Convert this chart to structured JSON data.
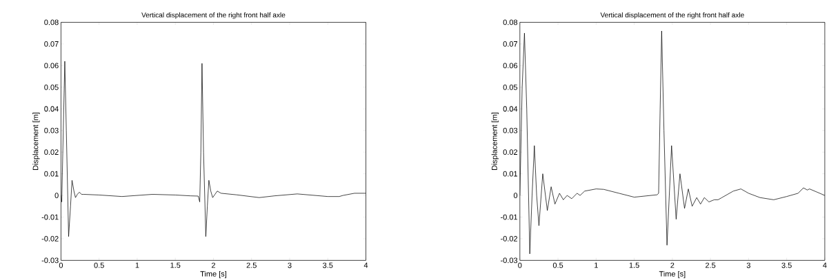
{
  "chart_data": [
    {
      "type": "line",
      "title": "Vertical displacement of the right front half axle",
      "xlabel": "Time [s]",
      "ylabel": "Displacement [m]",
      "color": "#000000",
      "xlim": [
        0,
        4
      ],
      "ylim": [
        -0.03,
        0.08
      ],
      "xticks": [
        0,
        0.5,
        1,
        1.5,
        2,
        2.5,
        3,
        3.5,
        4
      ],
      "yticks": [
        -0.03,
        -0.02,
        -0.01,
        0,
        0.01,
        0.02,
        0.03,
        0.04,
        0.05,
        0.06,
        0.07,
        0.08
      ],
      "x": [
        0,
        0.01,
        0.03,
        0.05,
        0.07,
        0.1,
        0.125,
        0.145,
        0.17,
        0.19,
        0.215,
        0.24,
        0.27,
        0.3,
        0.5,
        0.8,
        1.2,
        1.5,
        1.7,
        1.8,
        1.82,
        1.835,
        1.85,
        1.87,
        1.9,
        1.92,
        1.94,
        1.965,
        1.99,
        2.02,
        2.05,
        2.1,
        2.3,
        2.6,
        2.8,
        3.1,
        3.3,
        3.5,
        3.65,
        3.7,
        3.85,
        4
      ],
      "values": [
        0,
        -0.003,
        0.03,
        0.062,
        0.03,
        -0.019,
        -0.005,
        0.007,
        0.002,
        -0.001,
        0.0005,
        0.0015,
        0.0005,
        0.0005,
        0.0002,
        -0.0005,
        0.0005,
        0.0002,
        -0.0002,
        -0.0003,
        -0.003,
        0.02,
        0.061,
        0.02,
        -0.019,
        -0.005,
        0.007,
        0.002,
        -0.001,
        0.0005,
        0.002,
        0.001,
        0.0003,
        -0.001,
        -0.0002,
        0.0007,
        0.0001,
        -0.0005,
        -0.0005,
        0,
        0.001,
        0.001
      ]
    },
    {
      "type": "line",
      "title": "Vertical displacement of the right front half axle",
      "xlabel": "Time [s]",
      "ylabel": "Displacement [m]",
      "color": "#000000",
      "xlim": [
        0,
        4
      ],
      "ylim": [
        -0.03,
        0.08
      ],
      "xticks": [
        0,
        0.5,
        1,
        1.5,
        2,
        2.5,
        3,
        3.5,
        4
      ],
      "yticks": [
        -0.03,
        -0.02,
        -0.01,
        0,
        0.01,
        0.02,
        0.03,
        0.04,
        0.05,
        0.06,
        0.07,
        0.08
      ],
      "x": [
        0,
        0.03,
        0.06,
        0.09,
        0.13,
        0.16,
        0.19,
        0.22,
        0.25,
        0.3,
        0.36,
        0.41,
        0.46,
        0.52,
        0.57,
        0.62,
        0.68,
        0.75,
        0.79,
        0.85,
        1.0,
        1.1,
        1.3,
        1.5,
        1.8,
        1.82,
        1.84,
        1.86,
        1.89,
        1.93,
        1.96,
        1.99,
        2.05,
        2.1,
        2.16,
        2.21,
        2.26,
        2.32,
        2.37,
        2.42,
        2.48,
        2.55,
        2.6,
        2.65,
        2.8,
        2.9,
        3.0,
        3.15,
        3.33,
        3.5,
        3.65,
        3.72,
        3.77,
        3.8,
        3.9,
        4.0
      ],
      "values": [
        0,
        0.05,
        0.075,
        0.04,
        -0.027,
        0.0,
        0.023,
        0.0,
        -0.014,
        0.01,
        -0.007,
        0.004,
        -0.004,
        0.001,
        -0.002,
        0,
        -0.0015,
        0.001,
        0,
        0.002,
        0.003,
        0.0028,
        0.001,
        -0.0008,
        0.0003,
        0.001,
        0.04,
        0.076,
        0.03,
        -0.023,
        0.0,
        0.023,
        -0.011,
        0.01,
        -0.006,
        0.003,
        -0.005,
        -0.001,
        -0.004,
        -0.001,
        -0.003,
        -0.002,
        -0.002,
        -0.001,
        0.002,
        0.003,
        0.001,
        -0.001,
        -0.002,
        -0.0005,
        0.001,
        0.0035,
        0.0025,
        0.003,
        0.0015,
        0
      ]
    }
  ]
}
